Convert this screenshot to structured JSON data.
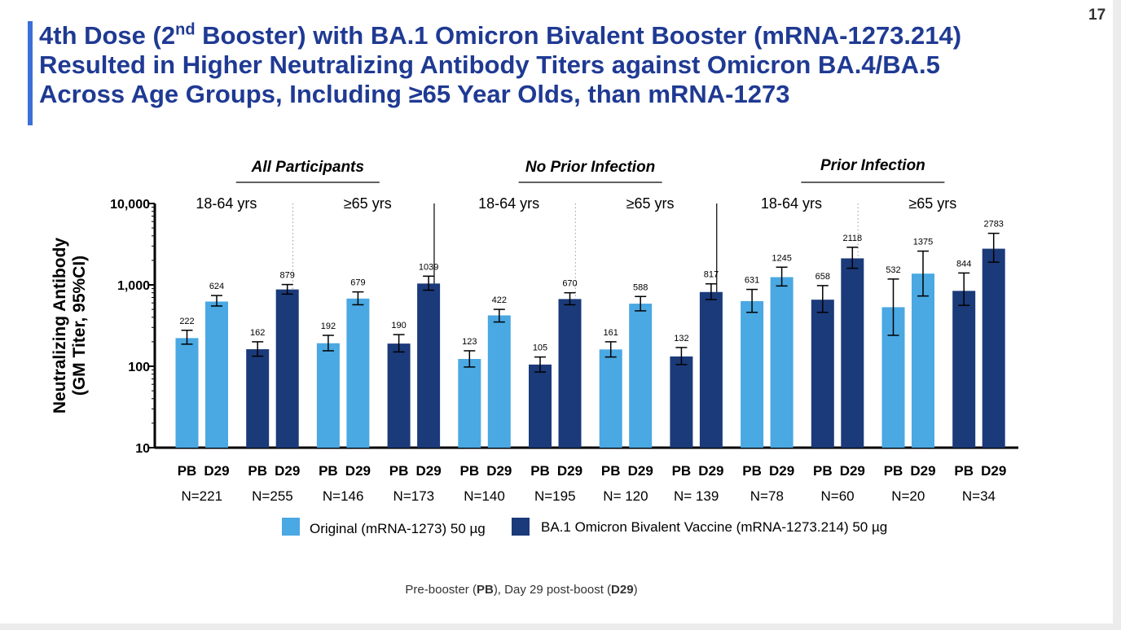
{
  "slide_number": "17",
  "title": {
    "part1": "4th Dose (2",
    "sup": "nd",
    "part2": " Booster) with BA.1 Omicron Bivalent Booster (mRNA-1273.214)",
    "line2": "Resulted in Higher Neutralizing Antibody Titers against Omicron BA.4/BA.5",
    "line3": "Across Age Groups, Including ≥65 Year Olds, than mRNA-1273"
  },
  "footnote": {
    "text1": "Pre-booster (",
    "bold1": "PB",
    "text2": "), Day 29 post-boost (",
    "bold2": "D29",
    "text3": ")"
  },
  "colors": {
    "original": "#4aa8e2",
    "bivalent": "#1b3a7a",
    "title": "#1f3a93",
    "accent": "#3c6fd8"
  },
  "chart_data": {
    "type": "bar",
    "y_scale": "log",
    "ylim": [
      10,
      10000
    ],
    "yticks": [
      "10",
      "100",
      "1,000",
      "10,000"
    ],
    "ytick_values": [
      10,
      100,
      1000,
      10000
    ],
    "ylabel": [
      "Neutralizing Antibody",
      "(GM Titer, 95%CI)"
    ],
    "panels": [
      {
        "label": "All Participants"
      },
      {
        "label": "No Prior Infection"
      },
      {
        "label": "Prior Infection"
      }
    ],
    "legend": [
      {
        "name": "Original (mRNA-1273) 50 µg",
        "color": "#4aa8e2"
      },
      {
        "name": "BA.1 Omicron Bivalent Vaccine (mRNA-1273.214) 50 µg",
        "color": "#1b3a7a"
      }
    ],
    "groups": [
      {
        "panel": 0,
        "age": "18-64 yrs",
        "vaccine": "original",
        "n": "N=221",
        "x_labels": [
          "PB",
          "D29"
        ],
        "values": [
          222,
          624
        ],
        "ci": [
          [
            187,
            277
          ],
          [
            550,
            740
          ]
        ]
      },
      {
        "panel": 0,
        "age": "",
        "vaccine": "bivalent",
        "n": "N=255",
        "x_labels": [
          "PB",
          "D29"
        ],
        "values": [
          162,
          879
        ],
        "ci": [
          [
            133,
            200
          ],
          [
            770,
            1010
          ]
        ]
      },
      {
        "panel": 0,
        "age": "≥65 yrs",
        "vaccine": "original",
        "n": "N=146",
        "x_labels": [
          "PB",
          "D29"
        ],
        "values": [
          192,
          679
        ],
        "ci": [
          [
            155,
            240
          ],
          [
            570,
            820
          ]
        ]
      },
      {
        "panel": 0,
        "age": "",
        "vaccine": "bivalent",
        "n": "N=173",
        "x_labels": [
          "PB",
          "D29"
        ],
        "values": [
          190,
          1039
        ],
        "ci": [
          [
            150,
            245
          ],
          [
            860,
            1280
          ]
        ]
      },
      {
        "panel": 1,
        "age": "18-64 yrs",
        "vaccine": "original",
        "n": "N=140",
        "x_labels": [
          "PB",
          "D29"
        ],
        "values": [
          123,
          422
        ],
        "ci": [
          [
            98,
            155
          ],
          [
            350,
            500
          ]
        ]
      },
      {
        "panel": 1,
        "age": "",
        "vaccine": "bivalent",
        "n": "N=195",
        "x_labels": [
          "PB",
          "D29"
        ],
        "values": [
          105,
          670
        ],
        "ci": [
          [
            85,
            130
          ],
          [
            570,
            800
          ]
        ]
      },
      {
        "panel": 1,
        "age": "≥65 yrs",
        "vaccine": "original",
        "n": "N= 120",
        "x_labels": [
          "PB",
          "D29"
        ],
        "values": [
          161,
          588
        ],
        "ci": [
          [
            130,
            200
          ],
          [
            480,
            720
          ]
        ]
      },
      {
        "panel": 1,
        "age": "",
        "vaccine": "bivalent",
        "n": "N= 139",
        "x_labels": [
          "PB",
          "D29"
        ],
        "values": [
          132,
          817
        ],
        "ci": [
          [
            105,
            170
          ],
          [
            660,
            1030
          ]
        ]
      },
      {
        "panel": 2,
        "age": "18-64 yrs",
        "vaccine": "original",
        "n": "N=78",
        "x_labels": [
          "PB",
          "D29"
        ],
        "values": [
          631,
          1245
        ],
        "ci": [
          [
            460,
            880
          ],
          [
            970,
            1650
          ]
        ]
      },
      {
        "panel": 2,
        "age": "",
        "vaccine": "bivalent",
        "n": "N=60",
        "x_labels": [
          "PB",
          "D29"
        ],
        "values": [
          658,
          2118
        ],
        "ci": [
          [
            460,
            980
          ],
          [
            1600,
            2900
          ]
        ]
      },
      {
        "panel": 2,
        "age": "≥65 yrs",
        "vaccine": "original",
        "n": "N=20",
        "x_labels": [
          "PB",
          "D29"
        ],
        "values": [
          532,
          1375
        ],
        "ci": [
          [
            240,
            1180
          ],
          [
            730,
            2600
          ]
        ]
      },
      {
        "panel": 2,
        "age": "",
        "vaccine": "bivalent",
        "n": "N=34",
        "x_labels": [
          "PB",
          "D29"
        ],
        "values": [
          844,
          2783
        ],
        "ci": [
          [
            560,
            1400
          ],
          [
            1900,
            4300
          ]
        ]
      }
    ]
  }
}
